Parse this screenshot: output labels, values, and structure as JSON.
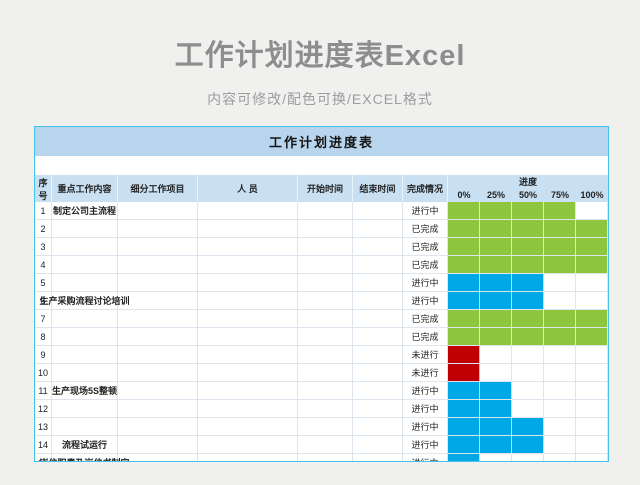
{
  "page": {
    "title": "工作计划进度表Excel",
    "subtitle": "内容可修改/配色可换/EXCEL格式"
  },
  "table": {
    "title": "工作计划进度表",
    "columns": [
      "序号",
      "重点工作内容",
      "细分工作项目",
      "人 员",
      "开始时间",
      "结束时间",
      "完成情况"
    ],
    "progress_header": "进度",
    "progress_ticks": [
      "0%",
      "25%",
      "50%",
      "75%",
      "100%"
    ],
    "rows": [
      {
        "no": "1",
        "task": "制定公司主流程",
        "detail": "",
        "person": "",
        "start": "",
        "end": "",
        "status": "进行中",
        "bar": "green",
        "cells": 4
      },
      {
        "no": "2",
        "task": "",
        "detail": "",
        "person": "",
        "start": "",
        "end": "",
        "status": "已完成",
        "bar": "green",
        "cells": 5
      },
      {
        "no": "3",
        "task": "",
        "detail": "",
        "person": "",
        "start": "",
        "end": "",
        "status": "已完成",
        "bar": "green",
        "cells": 5
      },
      {
        "no": "4",
        "task": "",
        "detail": "",
        "person": "",
        "start": "",
        "end": "",
        "status": "已完成",
        "bar": "green",
        "cells": 5
      },
      {
        "no": "5",
        "task": "",
        "detail": "",
        "person": "",
        "start": "",
        "end": "",
        "status": "进行中",
        "bar": "blue",
        "cells": 3
      },
      {
        "no": "6",
        "task": "生产采购流程讨论培训",
        "detail": "",
        "person": "",
        "start": "",
        "end": "",
        "status": "进行中",
        "bar": "blue",
        "cells": 3
      },
      {
        "no": "7",
        "task": "",
        "detail": "",
        "person": "",
        "start": "",
        "end": "",
        "status": "已完成",
        "bar": "green",
        "cells": 5
      },
      {
        "no": "8",
        "task": "",
        "detail": "",
        "person": "",
        "start": "",
        "end": "",
        "status": "已完成",
        "bar": "green",
        "cells": 5
      },
      {
        "no": "9",
        "task": "",
        "detail": "",
        "person": "",
        "start": "",
        "end": "",
        "status": "未进行",
        "bar": "red",
        "cells": 1
      },
      {
        "no": "10",
        "task": "",
        "detail": "",
        "person": "",
        "start": "",
        "end": "",
        "status": "未进行",
        "bar": "red",
        "cells": 1
      },
      {
        "no": "11",
        "task": "生产现场5S整顿",
        "detail": "",
        "person": "",
        "start": "",
        "end": "",
        "status": "进行中",
        "bar": "blue",
        "cells": 2
      },
      {
        "no": "12",
        "task": "",
        "detail": "",
        "person": "",
        "start": "",
        "end": "",
        "status": "进行中",
        "bar": "blue",
        "cells": 2
      },
      {
        "no": "13",
        "task": "",
        "detail": "",
        "person": "",
        "start": "",
        "end": "",
        "status": "进行中",
        "bar": "blue",
        "cells": 3
      },
      {
        "no": "14",
        "task": "流程试运行",
        "detail": "",
        "person": "",
        "start": "",
        "end": "",
        "status": "进行中",
        "bar": "blue",
        "cells": 3
      },
      {
        "no": "15",
        "task": "岗位职责及岗位书制定",
        "detail": "",
        "person": "",
        "start": "",
        "end": "",
        "status": "进行中",
        "bar": "blue",
        "cells": 1
      }
    ]
  },
  "colors": {
    "page_background": "#f0f0ef",
    "title_text": "#8d8d8d",
    "subtitle_text": "#9d9d9d",
    "panel_border": "#45c1ea",
    "band_background": "#b9d5ee",
    "header_background": "#c9e0f3",
    "gridline": "#dde6ee",
    "green": "#8ec63f",
    "blue": "#00a8e8",
    "red": "#c00000"
  }
}
